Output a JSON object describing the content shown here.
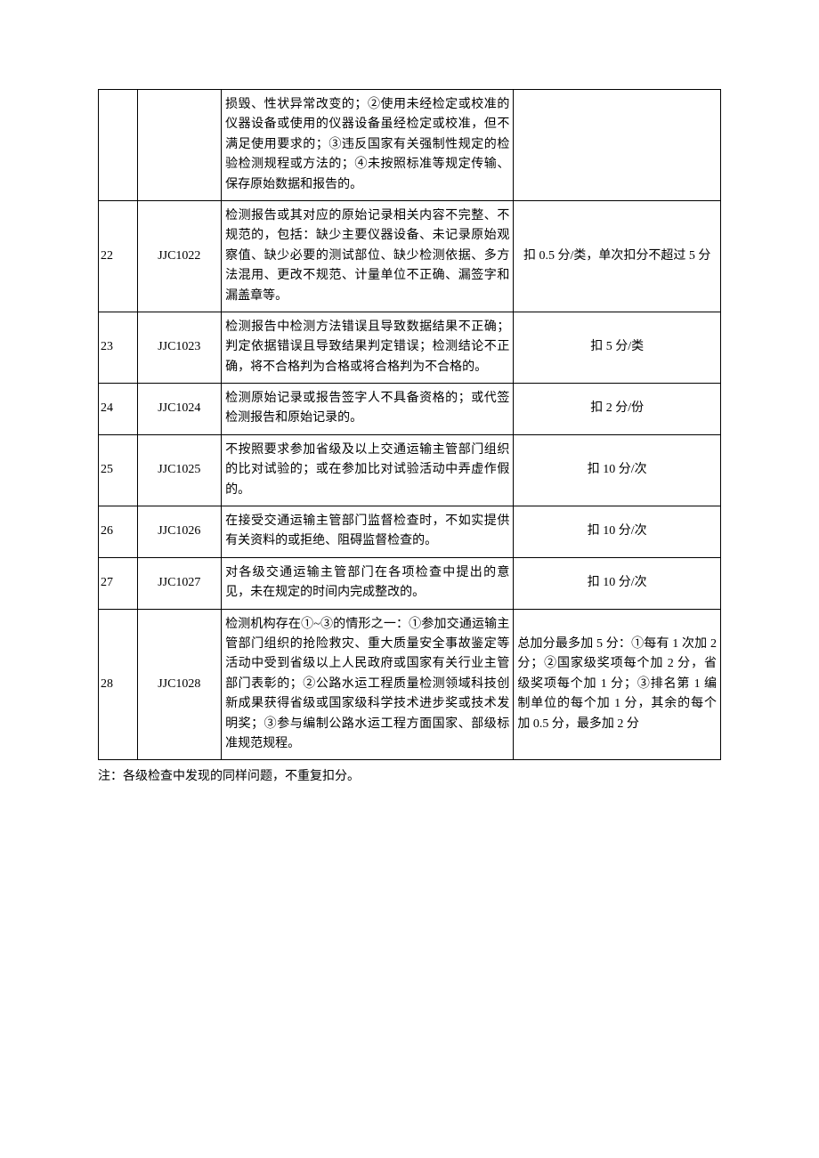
{
  "table": {
    "columns": {
      "num_width": 34,
      "code_width": 80,
      "desc_width": 300,
      "score_width": 210
    },
    "border_color": "#000000",
    "background_color": "#ffffff",
    "font_family": "SimSun",
    "font_size": 14,
    "rows": [
      {
        "num": "",
        "code": "",
        "desc": "损毁、性状异常改变的；②使用未经检定或校准的仪器设备或使用的仪器设备虽经检定或校准，但不满足使用要求的；③违反国家有关强制性规定的检验检测规程或方法的；④未按照标准等规定传输、保存原始数据和报告的。",
        "score": "",
        "score_align": "center"
      },
      {
        "num": "22",
        "code": "JJC1022",
        "desc": "检测报告或其对应的原始记录相关内容不完整、不规范的，包括：缺少主要仪器设备、未记录原始观察值、缺少必要的测试部位、缺少检测依据、多方法混用、更改不规范、计量单位不正确、漏签字和漏盖章等。",
        "score": "扣 0.5 分/类，单次扣分不超过 5 分",
        "score_align": "center"
      },
      {
        "num": "23",
        "code": "JJC1023",
        "desc": "检测报告中检测方法错误且导致数据结果不正确；判定依据错误且导致结果判定错误；检测结论不正确，将不合格判为合格或将合格判为不合格的。",
        "score": "扣 5 分/类",
        "score_align": "center"
      },
      {
        "num": "24",
        "code": "JJC1024",
        "desc": "检测原始记录或报告签字人不具备资格的；或代签检测报告和原始记录的。",
        "score": "扣 2 分/份",
        "score_align": "center"
      },
      {
        "num": "25",
        "code": "JJC1025",
        "desc": "不按照要求参加省级及以上交通运输主管部门组织的比对试验的；或在参加比对试验活动中弄虚作假的。",
        "score": "扣 10 分/次",
        "score_align": "center"
      },
      {
        "num": "26",
        "code": "JJC1026",
        "desc": "在接受交通运输主管部门监督检查时，不如实提供有关资料的或拒绝、阻碍监督检查的。",
        "score": "扣 10 分/次",
        "score_align": "center"
      },
      {
        "num": "27",
        "code": "JJC1027",
        "desc": "对各级交通运输主管部门在各项检查中提出的意见，未在规定的时间内完成整改的。",
        "score": "扣 10 分/次",
        "score_align": "center"
      },
      {
        "num": "28",
        "code": "JJC1028",
        "desc": "检测机构存在①~③的情形之一：①参加交通运输主管部门组织的抢险救灾、重大质量安全事故鉴定等活动中受到省级以上人民政府或国家有关行业主管部门表彰的；②公路水运工程质量检测领域科技创新成果获得省级或国家级科学技术进步奖或技术发明奖；③参与编制公路水运工程方面国家、部级标准规范规程。",
        "score": "总加分最多加 5 分：①每有 1 次加 2 分；②国家级奖项每个加 2 分，省级奖项每个加 1 分；③排名第 1 编制单位的每个加 1 分，其余的每个加 0.5 分，最多加 2 分",
        "score_align": "left"
      }
    ]
  },
  "note": "注：各级检查中发现的同样问题，不重复扣分。"
}
